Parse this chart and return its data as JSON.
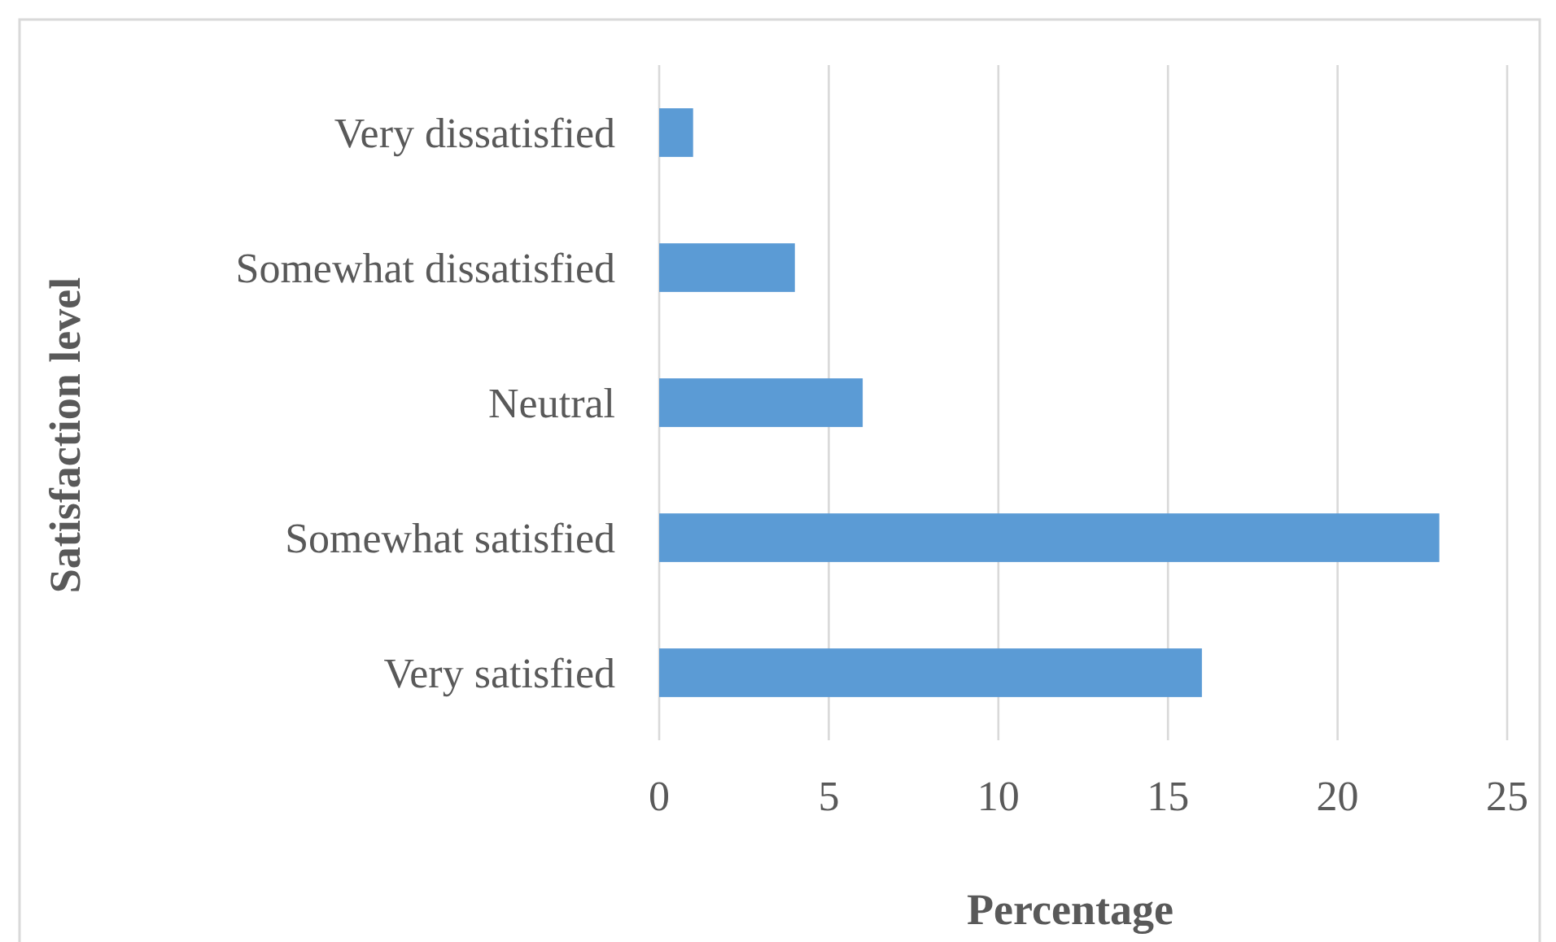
{
  "chart_data": {
    "type": "bar",
    "orientation": "horizontal",
    "xlabel": "Percentage",
    "ylabel": "Satisfaction level",
    "categories": [
      "Very dissatisfied",
      "Somewhat dissatisfied",
      "Neutral",
      "Somewhat satisfied",
      "Very satisfied"
    ],
    "values": [
      1,
      4,
      6,
      23,
      16
    ],
    "color": "#5b9bd5",
    "xlim": [
      0,
      25
    ],
    "xticks": [
      0,
      5,
      10,
      15,
      20,
      25
    ],
    "grid": "x"
  }
}
